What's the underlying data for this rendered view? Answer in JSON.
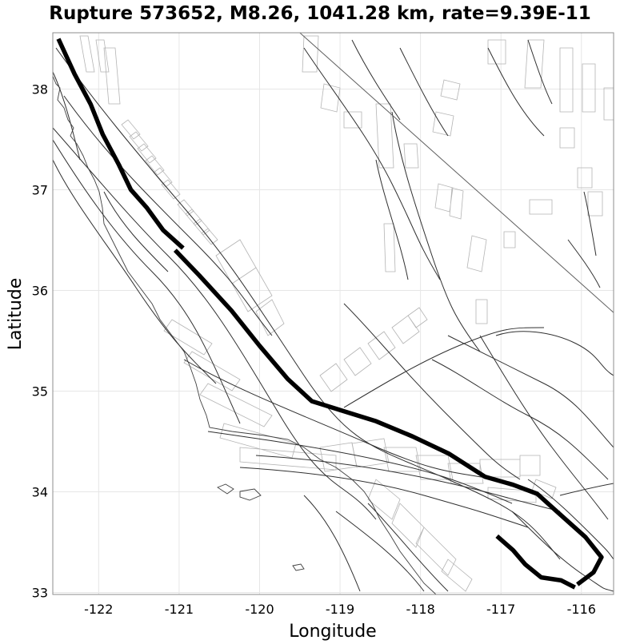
{
  "chart_data": {
    "type": "map",
    "title": "Rupture 573652, M8.26, 1041.28 km, rate=9.39E-11",
    "xlabel": "Longitude",
    "ylabel": "Latitude",
    "xlim": [
      -122.57,
      -115.6
    ],
    "ylim": [
      32.98,
      38.56
    ],
    "xticks": [
      -122,
      -121,
      -120,
      -119,
      -118,
      -117,
      -116
    ],
    "yticks": [
      33,
      34,
      35,
      36,
      37,
      38
    ],
    "xtick_labels": [
      "-122",
      "-121",
      "-120",
      "-119",
      "-118",
      "-117",
      "-116"
    ],
    "ytick_labels": [
      "33",
      "34",
      "35",
      "36",
      "37",
      "38"
    ],
    "rupture_traces": [
      {
        "name": "rupture-segment-north",
        "points": [
          [
            -122.5,
            38.5
          ],
          [
            -122.3,
            38.15
          ],
          [
            -122.1,
            37.85
          ],
          [
            -121.95,
            37.55
          ],
          [
            -121.75,
            37.25
          ],
          [
            -121.6,
            37.0
          ],
          [
            -121.4,
            36.82
          ],
          [
            -121.2,
            36.6
          ],
          [
            -120.95,
            36.42
          ]
        ]
      },
      {
        "name": "rupture-segment-central",
        "points": [
          [
            -121.05,
            36.4
          ],
          [
            -120.75,
            36.15
          ],
          [
            -120.35,
            35.8
          ],
          [
            -120.0,
            35.45
          ],
          [
            -119.65,
            35.12
          ],
          [
            -119.35,
            34.9
          ],
          [
            -118.95,
            34.8
          ],
          [
            -118.55,
            34.7
          ],
          [
            -118.1,
            34.55
          ],
          [
            -117.65,
            34.38
          ],
          [
            -117.2,
            34.15
          ],
          [
            -116.85,
            34.07
          ],
          [
            -116.55,
            33.98
          ],
          [
            -116.3,
            33.8
          ],
          [
            -115.95,
            33.55
          ],
          [
            -115.75,
            33.35
          ],
          [
            -115.85,
            33.2
          ],
          [
            -116.05,
            33.08
          ]
        ]
      },
      {
        "name": "rupture-segment-south",
        "points": [
          [
            -117.05,
            33.56
          ],
          [
            -116.85,
            33.42
          ],
          [
            -116.7,
            33.28
          ],
          [
            -116.5,
            33.15
          ],
          [
            -116.25,
            33.12
          ],
          [
            -116.08,
            33.05
          ]
        ]
      }
    ],
    "boundary_lines": [
      {
        "name": "state-boundary-line",
        "points": [
          [
            -119.5,
            38.56
          ],
          [
            -115.6,
            35.78
          ]
        ]
      }
    ]
  }
}
